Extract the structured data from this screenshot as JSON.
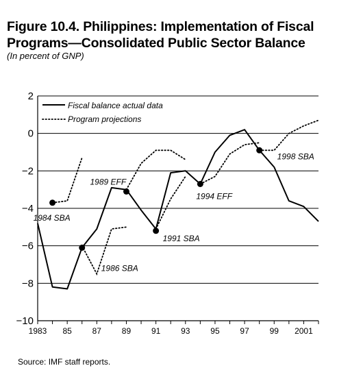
{
  "title": "Figure 10.4. Philippines: Implementation of Fiscal Programs—Consolidated Public Sector Balance",
  "subtitle": "(In percent of GNP)",
  "source": "Source: IMF staff reports.",
  "chart_data": {
    "type": "line",
    "title": "Figure 10.4. Philippines: Implementation of Fiscal Programs—Consolidated Public Sector Balance",
    "ylabel": "In percent of GNP",
    "xlabel": "",
    "xlim": [
      1983,
      2002
    ],
    "ylim": [
      -10,
      2
    ],
    "y_ticks": [
      2,
      0,
      -2,
      -4,
      -6,
      -8,
      -10
    ],
    "y_tick_labels": [
      "2",
      "0",
      "−2",
      "−4",
      "−6",
      "−8",
      "−10"
    ],
    "x_ticks": [
      1983,
      1985,
      1987,
      1989,
      1991,
      1993,
      1995,
      1997,
      1999,
      2001
    ],
    "x_tick_labels": [
      "1983",
      "85",
      "87",
      "89",
      "91",
      "93",
      "95",
      "97",
      "99",
      "2001"
    ],
    "grid": "horizontal",
    "legend": "top-left",
    "legend_entries": [
      {
        "label": "Fiscal balance actual data",
        "style": "solid"
      },
      {
        "label": "Program projections",
        "style": "dotted"
      }
    ],
    "series": [
      {
        "name": "Fiscal balance actual data",
        "style": "solid",
        "x": [
          1983,
          1984,
          1985,
          1986,
          1987,
          1988,
          1989,
          1990,
          1991,
          1992,
          1993,
          1994,
          1995,
          1996,
          1997,
          1998,
          1999,
          2000,
          2001,
          2002
        ],
        "y": [
          -4.8,
          -8.2,
          -8.3,
          -6.1,
          -5.1,
          -2.9,
          -3.0,
          -4.1,
          -5.1,
          -2.1,
          -2.0,
          -2.7,
          -1.0,
          -0.1,
          0.2,
          -0.9,
          -1.8,
          -3.6,
          -3.9,
          -4.7
        ]
      },
      {
        "name": "Program projections",
        "style": "dotted",
        "segments": [
          {
            "program": "1984 SBA",
            "x": [
              1984,
              1985,
              1986
            ],
            "y": [
              -3.7,
              -3.6,
              -1.3
            ]
          },
          {
            "program": "1986 SBA",
            "x": [
              1986,
              1987,
              1988,
              1989
            ],
            "y": [
              -6.0,
              -7.5,
              -5.1,
              -5.0
            ]
          },
          {
            "program": "1989 EFF",
            "x": [
              1989,
              1990,
              1991,
              1992,
              1993
            ],
            "y": [
              -3.0,
              -1.6,
              -0.9,
              -0.9,
              -1.4
            ]
          },
          {
            "program": "1991 SBA",
            "x": [
              1991,
              1992,
              1993
            ],
            "y": [
              -5.1,
              -3.5,
              -2.3
            ]
          },
          {
            "program": "1994 EFF",
            "x": [
              1994,
              1995,
              1996,
              1997,
              1998
            ],
            "y": [
              -2.7,
              -2.3,
              -1.1,
              -0.6,
              -0.5
            ]
          },
          {
            "program": "1998 SBA",
            "x": [
              1998,
              1999,
              2000,
              2001,
              2002
            ],
            "y": [
              -0.9,
              -0.9,
              0.0,
              0.4,
              0.7
            ]
          }
        ]
      }
    ],
    "markers": [
      {
        "label": "1984 SBA",
        "x": 1984,
        "y": -3.7
      },
      {
        "label": "1986 SBA",
        "x": 1986,
        "y": -6.1
      },
      {
        "label": "1989 EFF",
        "x": 1989,
        "y": -3.1
      },
      {
        "label": "1991 SBA",
        "x": 1991,
        "y": -5.2
      },
      {
        "label": "1994 EFF",
        "x": 1994,
        "y": -2.7
      },
      {
        "label": "1998 SBA",
        "x": 1998,
        "y": -0.9
      }
    ]
  }
}
